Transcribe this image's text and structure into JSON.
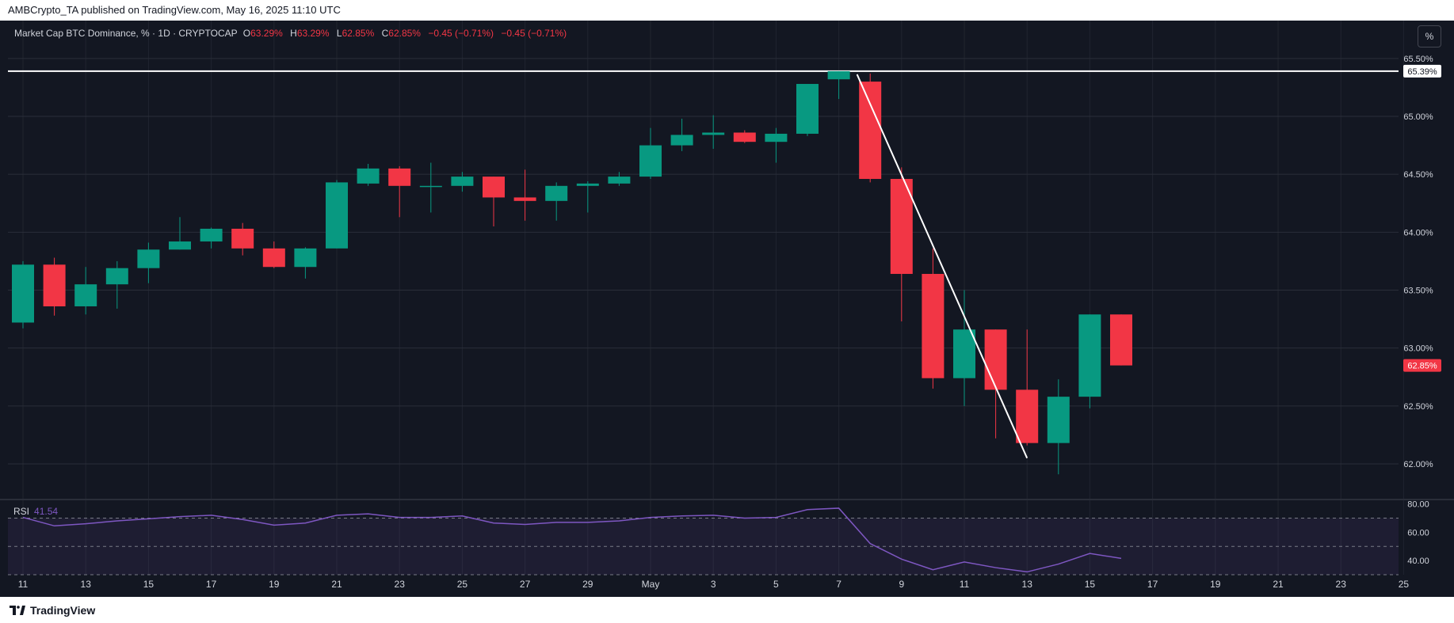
{
  "header": {
    "published_text": "AMBCrypto_TA published on TradingView.com, May 16, 2025 11:10 UTC"
  },
  "legend": {
    "symbol": "Market Cap BTC Dominance, % · 1D · CRYPTOCAP",
    "o_label": "O",
    "o_value": "63.29%",
    "h_label": "H",
    "h_value": "63.29%",
    "l_label": "L",
    "l_value": "62.85%",
    "c_label": "C",
    "c_value": "62.85%",
    "change1": "−0.45 (−0.71%)",
    "change2": "−0.45 (−0.71%)"
  },
  "scale_button": "%",
  "rsi": {
    "label": "RSI",
    "value": "41.54"
  },
  "footer": {
    "brand": "TradingView"
  },
  "colors": {
    "up": "#089981",
    "down": "#f23645",
    "background": "#131722",
    "grid": "#2a2e39",
    "text": "#d1d4dc",
    "rsi": "#7e57c2",
    "line": "#ffffff"
  },
  "chart_data": {
    "type": "candlestick",
    "title": "Market Cap BTC Dominance, % · 1D · CRYPTOCAP",
    "ylim": [
      61.7,
      65.6
    ],
    "y_ticks": [
      "65.50%",
      "65.00%",
      "64.50%",
      "64.00%",
      "63.50%",
      "63.00%",
      "62.50%",
      "62.00%"
    ],
    "x_ticks": [
      "11",
      "13",
      "15",
      "17",
      "19",
      "21",
      "23",
      "25",
      "27",
      "29",
      "May",
      "3",
      "5",
      "7",
      "9",
      "11",
      "13",
      "15",
      "17",
      "19",
      "21",
      "23",
      "25"
    ],
    "dates": [
      "Apr 11",
      "Apr 12",
      "Apr 13",
      "Apr 14",
      "Apr 15",
      "Apr 16",
      "Apr 17",
      "Apr 18",
      "Apr 19",
      "Apr 20",
      "Apr 21",
      "Apr 22",
      "Apr 23",
      "Apr 24",
      "Apr 25",
      "Apr 26",
      "Apr 27",
      "Apr 28",
      "Apr 29",
      "Apr 30",
      "May 1",
      "May 2",
      "May 3",
      "May 4",
      "May 5",
      "May 6",
      "May 7",
      "May 8",
      "May 9",
      "May 10",
      "May 11",
      "May 12",
      "May 13",
      "May 14",
      "May 15",
      "May 16"
    ],
    "open": [
      63.22,
      63.72,
      63.36,
      63.55,
      63.69,
      63.85,
      63.92,
      64.03,
      63.86,
      63.7,
      63.86,
      64.42,
      64.55,
      64.4,
      64.4,
      64.48,
      64.3,
      64.27,
      64.4,
      64.42,
      64.48,
      64.75,
      64.84,
      64.86,
      64.78,
      64.85,
      65.32,
      65.3,
      64.46,
      63.64,
      62.74,
      63.16,
      62.64,
      62.18,
      62.58,
      63.29
    ],
    "high": [
      63.75,
      63.78,
      63.7,
      63.75,
      63.91,
      64.13,
      64.04,
      64.08,
      63.92,
      63.87,
      64.45,
      64.59,
      64.57,
      64.6,
      64.52,
      64.48,
      64.54,
      64.43,
      64.44,
      64.52,
      64.9,
      64.98,
      65.01,
      64.88,
      64.9,
      65.25,
      65.39,
      65.37,
      64.56,
      63.86,
      63.5,
      63.16,
      63.16,
      62.73,
      63.29,
      63.29
    ],
    "low": [
      63.17,
      63.28,
      63.29,
      63.34,
      63.56,
      63.85,
      63.86,
      63.8,
      63.69,
      63.6,
      63.86,
      64.4,
      64.13,
      64.17,
      64.35,
      64.05,
      64.1,
      64.1,
      64.17,
      64.4,
      64.46,
      64.7,
      64.72,
      64.77,
      64.6,
      64.83,
      65.15,
      64.43,
      63.23,
      62.65,
      62.5,
      62.22,
      62.16,
      61.91,
      62.48,
      62.85
    ],
    "close": [
      63.72,
      63.36,
      63.55,
      63.69,
      63.85,
      63.92,
      64.03,
      63.86,
      63.7,
      63.86,
      64.43,
      64.55,
      64.4,
      64.4,
      64.48,
      64.3,
      64.27,
      64.4,
      64.42,
      64.48,
      64.75,
      64.84,
      64.86,
      64.78,
      64.85,
      65.28,
      65.39,
      64.46,
      63.64,
      62.74,
      63.16,
      62.64,
      62.18,
      62.58,
      63.29,
      62.85
    ],
    "horizontal_line": {
      "value": 65.39,
      "label": "65.39%"
    },
    "last_price": {
      "value": 62.85,
      "label": "62.85%"
    },
    "trend_line": {
      "from_date": "May 7",
      "from_value": 65.39,
      "to_date": "May 13",
      "to_value": 62.05
    },
    "rsi": {
      "name": "RSI",
      "value": 41.54,
      "ylim": [
        30,
        82
      ],
      "y_ticks": [
        "80.00",
        "60.00",
        "40.00"
      ],
      "overbought": 70,
      "middle": 50,
      "oversold": 30,
      "values": [
        70.5,
        64.5,
        66.0,
        68.0,
        69.5,
        71.0,
        72.0,
        69.0,
        65.0,
        66.5,
        72.0,
        73.0,
        70.5,
        70.5,
        71.5,
        66.5,
        65.5,
        67.0,
        67.0,
        68.0,
        70.5,
        71.5,
        72.0,
        70.0,
        70.5,
        76.0,
        77.0,
        52.0,
        41.0,
        33.5,
        39.0,
        35.0,
        32.0,
        37.5,
        45.0,
        41.54
      ]
    }
  }
}
